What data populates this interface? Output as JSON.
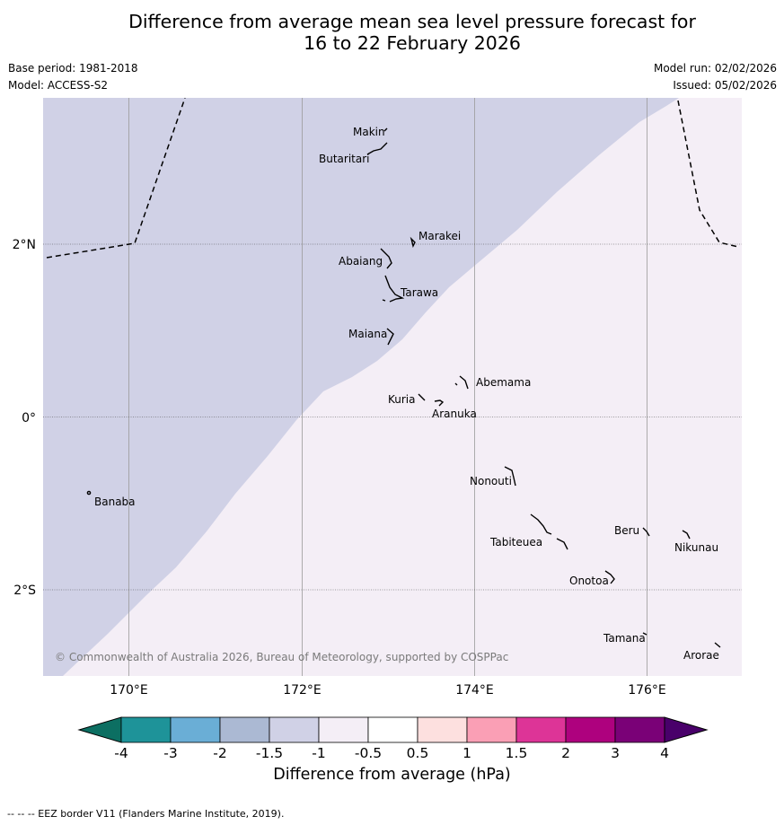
{
  "title_line1": "Difference from average mean sea level pressure forecast for",
  "title_line2": "16 to 22 February 2026",
  "base_period": "Base period: 1981-2018",
  "model": "Model: ACCESS-S2",
  "model_run": "Model run: 02/02/2026",
  "issued": "Issued: 05/02/2026",
  "copyright": "© Commonwealth of Australia 2026, Bureau of Meteorology, supported by COSPPac",
  "eez_credit": "--  --  -- EEZ border V11 (Flanders Marine Institute, 2019).",
  "lon_ticks": [
    "170°E",
    "172°E",
    "174°E",
    "176°E"
  ],
  "lat_ticks": [
    "2°N",
    "0°",
    "2°S"
  ],
  "islands": [
    "Makin",
    "Butaritari",
    "Marakei",
    "Abaiang",
    "Tarawa",
    "Maiana",
    "Abemama",
    "Kuria",
    "Aranuka",
    "Nonouti",
    "Banaba",
    "Tabiteuea",
    "Beru",
    "Nikunau",
    "Onotoa",
    "Tamana",
    "Arorae"
  ],
  "colorbar": {
    "title": "Difference from average (hPa)",
    "ticks": [
      "-4",
      "-3",
      "-2",
      "-1.5",
      "-1",
      "-0.5",
      "0.5",
      "1",
      "1.5",
      "2",
      "3",
      "4"
    ],
    "bins": [
      {
        "range": "below -4",
        "color": "#0c6f62"
      },
      {
        "range": "-4 to -3",
        "color": "#1e9399"
      },
      {
        "range": "-3 to -2",
        "color": "#6aaed6"
      },
      {
        "range": "-2 to -1.5",
        "color": "#abb9d3"
      },
      {
        "range": "-1.5 to -1",
        "color": "#d0d1e6"
      },
      {
        "range": "-1 to -0.5",
        "color": "#f4eef6"
      },
      {
        "range": "-0.5 to 0.5",
        "color": "#ffffff"
      },
      {
        "range": "0.5 to 1",
        "color": "#fde0df"
      },
      {
        "range": "1 to 1.5",
        "color": "#fa9fb5"
      },
      {
        "range": "1.5 to 2",
        "color": "#dd3497"
      },
      {
        "range": "2 to 3",
        "color": "#ae017e"
      },
      {
        "range": "3 to 4",
        "color": "#7a0177"
      },
      {
        "range": "above 4",
        "color": "#49006a"
      }
    ]
  },
  "field": {
    "northwest_range": "-1.5 to -1",
    "southeast_range": "-1 to -0.5"
  }
}
